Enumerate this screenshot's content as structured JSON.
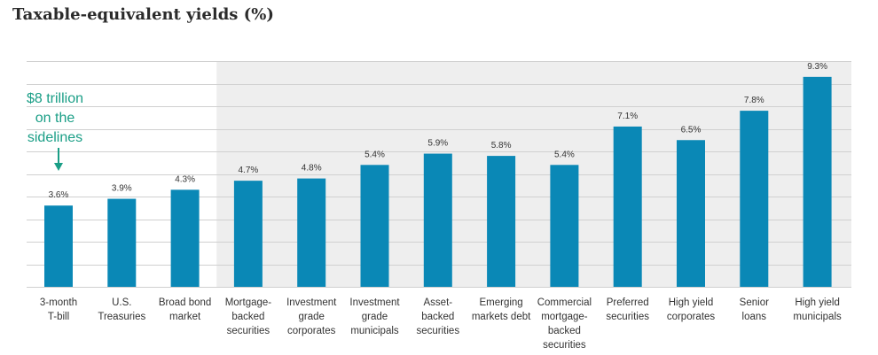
{
  "chart_data": {
    "type": "bar",
    "title": "Taxable-equivalent yields (%)",
    "categories": [
      [
        "3-month",
        "T-bill"
      ],
      [
        "U.S.",
        "Treasuries"
      ],
      [
        "Broad bond",
        "market"
      ],
      [
        "Mortgage-",
        "backed",
        "securities"
      ],
      [
        "Investment",
        "grade",
        "corporates"
      ],
      [
        "Investment",
        "grade",
        "municipals"
      ],
      [
        "Asset-",
        "backed",
        "securities"
      ],
      [
        "Emerging",
        "markets debt"
      ],
      [
        "Commercial",
        "mortgage-",
        "backed",
        "securities"
      ],
      [
        "Preferred",
        "securities"
      ],
      [
        "High yield",
        "corporates"
      ],
      [
        "Senior",
        "loans"
      ],
      [
        "High yield",
        "municipals"
      ]
    ],
    "values": [
      3.6,
      3.9,
      4.3,
      4.7,
      4.8,
      5.4,
      5.9,
      5.8,
      5.4,
      7.1,
      6.5,
      7.8,
      9.3
    ],
    "value_labels": [
      "3.6%",
      "3.9%",
      "4.3%",
      "4.7%",
      "4.8%",
      "5.4%",
      "5.9%",
      "5.8%",
      "5.4%",
      "7.1%",
      "6.5%",
      "7.8%",
      "9.3%"
    ],
    "ylim": [
      0,
      10
    ],
    "grid_step": 1,
    "shaded_from_index": 3,
    "annotation": [
      "$8 trillion",
      "on the",
      "sidelines"
    ],
    "xlabel": "",
    "ylabel": ""
  },
  "colors": {
    "bar": "#0a88b6",
    "annotation": "#1a9e86",
    "shade": "#eeeeee",
    "grid": "#d0d0d0"
  }
}
